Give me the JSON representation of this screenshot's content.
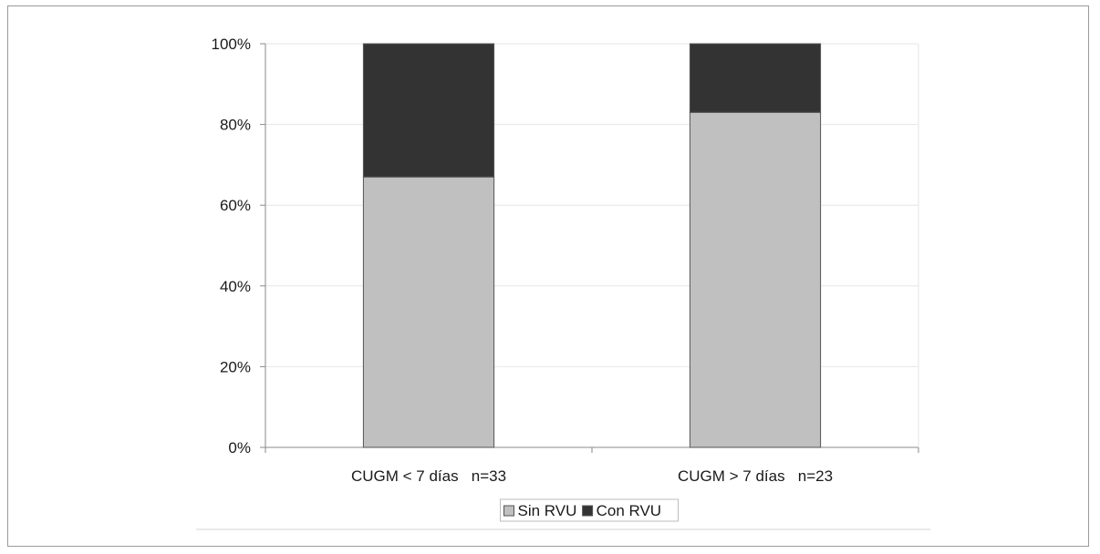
{
  "chart_data": {
    "type": "bar",
    "stacked": true,
    "percent_stacked": true,
    "categories": [
      "CUGM < 7 días   n=33",
      "CUGM > 7 días   n=23"
    ],
    "series": [
      {
        "name": "Sin RVU",
        "values": [
          67,
          83
        ],
        "color": "#c0c0c0"
      },
      {
        "name": "Con RVU",
        "values": [
          33,
          17
        ],
        "color": "#333333"
      }
    ],
    "title": "",
    "xlabel": "",
    "ylabel": "",
    "ylim": [
      0,
      100
    ],
    "yticks": [
      "0%",
      "20%",
      "40%",
      "60%",
      "80%",
      "100%"
    ],
    "grid": true,
    "legend": "bottom"
  }
}
